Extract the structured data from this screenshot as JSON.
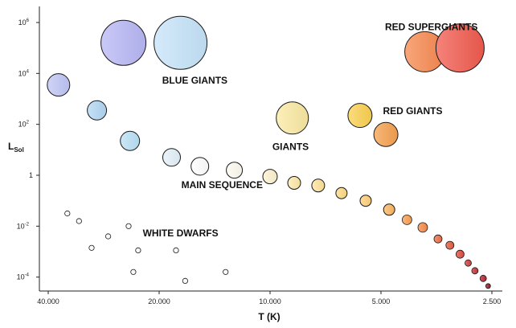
{
  "chart_data": {
    "type": "scatter",
    "title": "",
    "xlabel": "T (K)",
    "ylabel_main": "L",
    "ylabel_sub": "Sol",
    "x_scale": "log",
    "x_reversed": true,
    "y_scale": "log",
    "xlim": [
      40000,
      2500
    ],
    "ylim_log10": [
      -4.3,
      6.1
    ],
    "x_ticks": [
      {
        "value": 40000,
        "label": "40.000"
      },
      {
        "value": 20000,
        "label": "20.000"
      },
      {
        "value": 10000,
        "label": "10.000"
      },
      {
        "value": 5000,
        "label": "5.000"
      },
      {
        "value": 2500,
        "label": "2.500"
      }
    ],
    "y_ticks": [
      {
        "log": 6,
        "base": "10",
        "exp": "6"
      },
      {
        "log": 4,
        "base": "10",
        "exp": "4"
      },
      {
        "log": 2,
        "base": "10",
        "exp": "2"
      },
      {
        "log": 0,
        "base": "1",
        "exp": ""
      },
      {
        "log": -2,
        "base": "10",
        "exp": "-2"
      },
      {
        "log": -4,
        "base": "10",
        "exp": "-4"
      }
    ],
    "regions": [
      {
        "label": "BLUE GIANTS",
        "anchor_T": 16000,
        "anchor_log": 3.6
      },
      {
        "label": "RED SUPERGIANTS",
        "anchor_T": 3650,
        "anchor_log": 5.7
      },
      {
        "label": "RED GIANTS",
        "anchor_T": 4100,
        "anchor_log": 2.4
      },
      {
        "label": "GIANTS",
        "anchor_T": 8800,
        "anchor_log": 1.0
      },
      {
        "label": "MAIN SEQUENCE",
        "anchor_T": 13500,
        "anchor_log": -0.5
      },
      {
        "label": "WHITE DWARFS",
        "anchor_T": 17500,
        "anchor_log": -2.4
      }
    ],
    "stars": [
      {
        "group": "blue giants",
        "T": 25000,
        "logL": 5.2,
        "size": 28,
        "color": "#b8b7f5"
      },
      {
        "group": "blue giants",
        "T": 17500,
        "logL": 5.2,
        "size": 33,
        "color": "#c6e3f9"
      },
      {
        "group": "red supergiants",
        "T": 3800,
        "logL": 4.85,
        "size": 25,
        "color": "#f7884f"
      },
      {
        "group": "red supergiants",
        "T": 3050,
        "logL": 5.0,
        "size": 30,
        "color": "#f15a4e"
      },
      {
        "group": "giants",
        "T": 8700,
        "logL": 2.25,
        "size": 20,
        "color": "#fbe9a2"
      },
      {
        "group": "red giants",
        "T": 5700,
        "logL": 2.35,
        "size": 15,
        "color": "#fbd050"
      },
      {
        "group": "red giants",
        "T": 4850,
        "logL": 1.6,
        "size": 15,
        "color": "#f6a04e"
      },
      {
        "group": "main sequence",
        "T": 37500,
        "logL": 3.55,
        "size": 14,
        "color": "#bfc6f5"
      },
      {
        "group": "main sequence",
        "T": 29500,
        "logL": 2.55,
        "size": 12,
        "color": "#b2d7f4"
      },
      {
        "group": "main sequence",
        "T": 24000,
        "logL": 1.35,
        "size": 12,
        "color": "#b9e0f6"
      },
      {
        "group": "main sequence",
        "T": 18500,
        "logL": 0.7,
        "size": 11,
        "color": "#e3f0fa"
      },
      {
        "group": "main sequence",
        "T": 15500,
        "logL": 0.35,
        "size": 11,
        "color": "#ffffff"
      },
      {
        "group": "main sequence",
        "T": 12500,
        "logL": 0.2,
        "size": 10,
        "color": "#fefaf0"
      },
      {
        "group": "main sequence",
        "T": 10000,
        "logL": -0.05,
        "size": 9,
        "color": "#fdf2cf"
      },
      {
        "group": "main sequence",
        "T": 8600,
        "logL": -0.3,
        "size": 8,
        "color": "#fdeaa8"
      },
      {
        "group": "main sequence",
        "T": 7400,
        "logL": -0.4,
        "size": 8,
        "color": "#fde39a"
      },
      {
        "group": "main sequence",
        "T": 6400,
        "logL": -0.7,
        "size": 7,
        "color": "#fddb84"
      },
      {
        "group": "main sequence",
        "T": 5500,
        "logL": -1.0,
        "size": 7,
        "color": "#fdd07a"
      },
      {
        "group": "main sequence",
        "T": 4750,
        "logL": -1.35,
        "size": 7,
        "color": "#fbb661"
      },
      {
        "group": "main sequence",
        "T": 4250,
        "logL": -1.75,
        "size": 6,
        "color": "#f99f52"
      },
      {
        "group": "main sequence",
        "T": 3850,
        "logL": -2.05,
        "size": 6,
        "color": "#f68b49"
      },
      {
        "group": "main sequence",
        "T": 3500,
        "logL": -2.5,
        "size": 5,
        "color": "#ef6d43"
      },
      {
        "group": "main sequence",
        "T": 3250,
        "logL": -2.75,
        "size": 5,
        "color": "#e45a3e"
      },
      {
        "group": "main sequence",
        "T": 3050,
        "logL": -3.1,
        "size": 5,
        "color": "#e04c3d"
      },
      {
        "group": "main sequence",
        "T": 2900,
        "logL": -3.45,
        "size": 4,
        "color": "#d63b3a"
      },
      {
        "group": "main sequence",
        "T": 2780,
        "logL": -3.75,
        "size": 4,
        "color": "#c93236"
      },
      {
        "group": "main sequence",
        "T": 2640,
        "logL": -4.05,
        "size": 4,
        "color": "#b82330"
      },
      {
        "group": "main sequence",
        "T": 2560,
        "logL": -4.35,
        "size": 3,
        "color": "#9e1c29"
      },
      {
        "group": "white dwarfs",
        "T": 35500,
        "logL": -1.5,
        "size": 3.2,
        "color": "#ffffff"
      },
      {
        "group": "white dwarfs",
        "T": 33000,
        "logL": -1.8,
        "size": 3.2,
        "color": "#ffffff"
      },
      {
        "group": "white dwarfs",
        "T": 27500,
        "logL": -2.4,
        "size": 3.2,
        "color": "#ffffff"
      },
      {
        "group": "white dwarfs",
        "T": 30500,
        "logL": -2.85,
        "size": 3.2,
        "color": "#ffffff"
      },
      {
        "group": "white dwarfs",
        "T": 24200,
        "logL": -2.0,
        "size": 3.2,
        "color": "#ffffff"
      },
      {
        "group": "white dwarfs",
        "T": 22800,
        "logL": -2.95,
        "size": 3.2,
        "color": "#ffffff"
      },
      {
        "group": "white dwarfs",
        "T": 18000,
        "logL": -2.95,
        "size": 3.2,
        "color": "#ffffff"
      },
      {
        "group": "white dwarfs",
        "T": 23500,
        "logL": -3.8,
        "size": 3.2,
        "color": "#ffffff"
      },
      {
        "group": "white dwarfs",
        "T": 17000,
        "logL": -4.15,
        "size": 3.2,
        "color": "#ffffff"
      },
      {
        "group": "white dwarfs",
        "T": 13200,
        "logL": -3.8,
        "size": 3.2,
        "color": "#ffffff"
      }
    ]
  }
}
